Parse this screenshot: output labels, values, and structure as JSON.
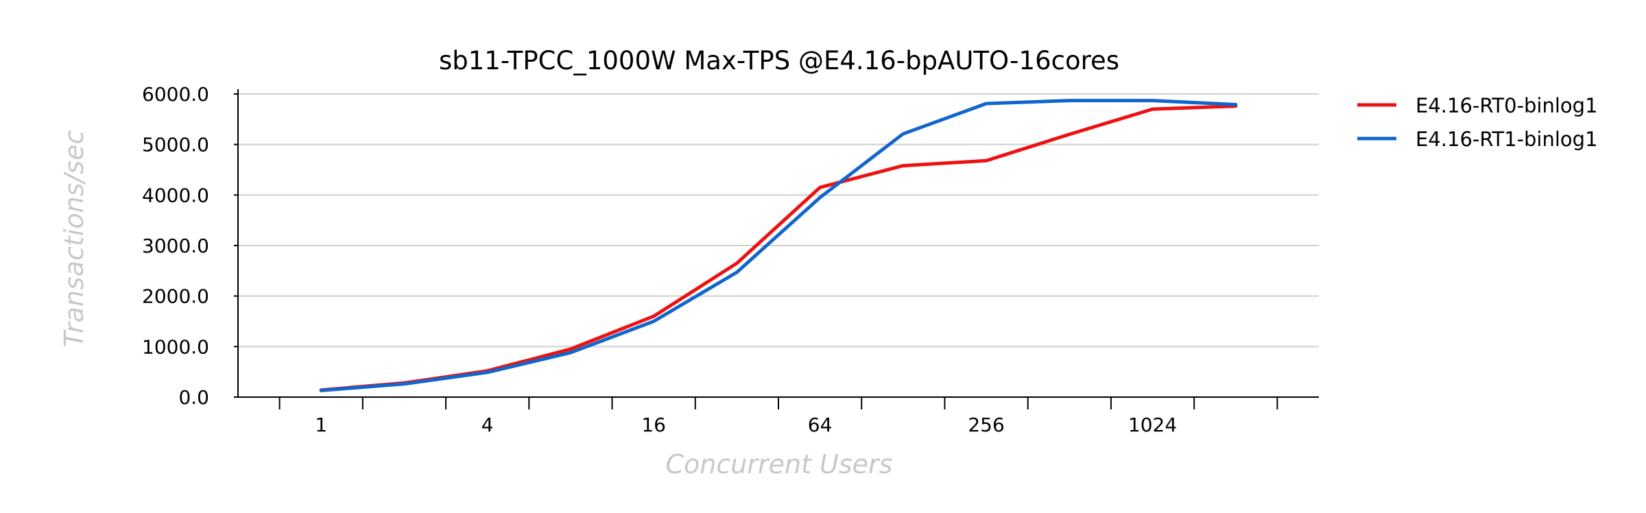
{
  "chart_data": {
    "type": "line",
    "title": "sb11-TPCC_1000W Max-TPS @E4.16-bpAUTO-16cores",
    "xlabel": "Concurrent Users",
    "ylabel": "Transactions/sec",
    "x_scale": "log2",
    "x": [
      1,
      2,
      4,
      8,
      16,
      32,
      64,
      128,
      256,
      512,
      1024,
      2048
    ],
    "x_tick_labels": [
      "1",
      "",
      "4",
      "",
      "16",
      "",
      "64",
      "",
      "256",
      "",
      "1024",
      ""
    ],
    "ylim": [
      0,
      6000
    ],
    "y_ticks": [
      0,
      1000,
      2000,
      3000,
      4000,
      5000,
      6000
    ],
    "y_tick_labels": [
      "0.0",
      "1000.0",
      "2000.0",
      "3000.0",
      "4000.0",
      "5000.0",
      "6000.0"
    ],
    "grid": "horizontal",
    "legend_position": "right",
    "series": [
      {
        "name": "E4.16-RT0-binlog1",
        "color": "#ee1111",
        "values": [
          140,
          280,
          520,
          950,
          1600,
          2650,
          4150,
          4580,
          4680,
          5200,
          5700,
          5760
        ]
      },
      {
        "name": "E4.16-RT1-binlog1",
        "color": "#1166cc",
        "values": [
          130,
          260,
          490,
          880,
          1500,
          2470,
          3950,
          5210,
          5810,
          5870,
          5870,
          5790
        ]
      }
    ]
  }
}
